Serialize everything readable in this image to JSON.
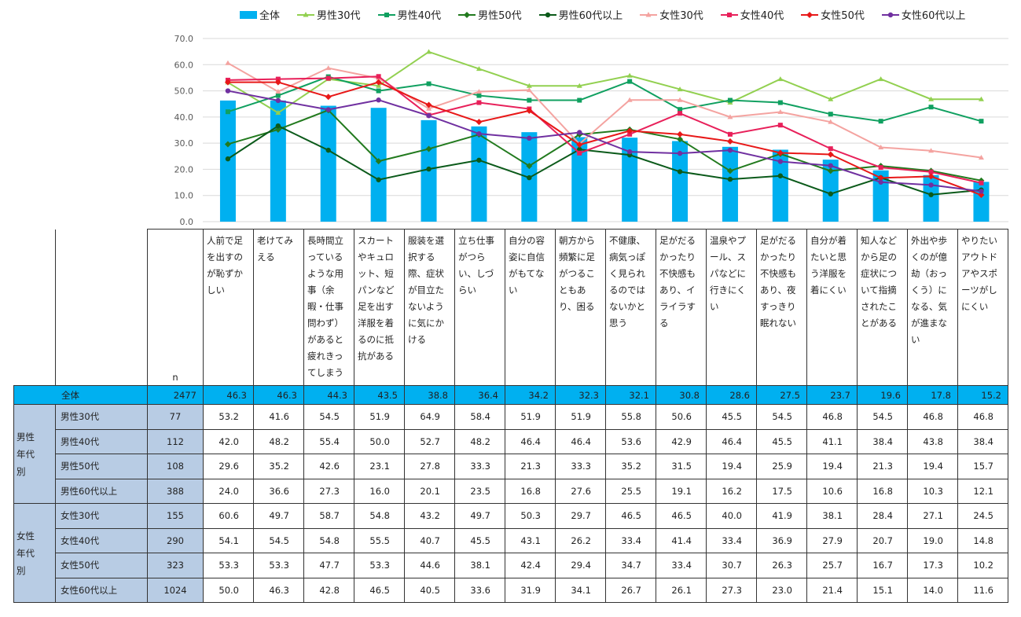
{
  "legend": [
    {
      "name": "全体",
      "type": "bar",
      "color": "#00b0f0"
    },
    {
      "name": "男性30代",
      "type": "line",
      "color": "#92d050",
      "marker": "triangle"
    },
    {
      "name": "男性40代",
      "type": "line",
      "color": "#10a060",
      "marker": "square"
    },
    {
      "name": "男性50代",
      "type": "line",
      "color": "#227a1e",
      "marker": "diamond"
    },
    {
      "name": "男性60代以上",
      "type": "line",
      "color": "#0b5a1a",
      "marker": "circle"
    },
    {
      "name": "女性30代",
      "type": "line",
      "color": "#f4a3a0",
      "marker": "triangle"
    },
    {
      "name": "女性40代",
      "type": "line",
      "color": "#e8205a",
      "marker": "square"
    },
    {
      "name": "女性50代",
      "type": "line",
      "color": "#e81818",
      "marker": "diamond"
    },
    {
      "name": "女性60代以上",
      "type": "line",
      "color": "#7030a0",
      "marker": "circle"
    }
  ],
  "chart_data": {
    "type": "bar",
    "title": "",
    "ylim": [
      0,
      70
    ],
    "yticks": [
      "0.0",
      "10.0",
      "20.0",
      "30.0",
      "40.0",
      "50.0",
      "60.0",
      "70.0"
    ],
    "categories": [
      "人前で足を出すのが恥ずかしい",
      "老けてみえる",
      "長時間立っているような用事（余暇・仕事問わず）があると疲れきってしまう",
      "スカートやキュロット、短パンなど足を出す洋服を着るのに抵抗がある",
      "服装を選択する際、症状が目立たないように気にかける",
      "立ち仕事がつらい、しづらい",
      "自分の容姿に自信がもてない",
      "朝方から頻繁に足がつることもあり、困る",
      "不健康、病気っぽく見られるのではないかと思う",
      "足がだるかったり不快感もあり、イライラする",
      "温泉やプール、スパなどに行きにくい",
      "足がだるかったり不快感もあり、夜すっきり眠れない",
      "自分が着たいと思う洋服を着にくい",
      "知人などから足の症状について指摘されたことがある",
      "外出や歩くのが億劫（おっくう）になる、気が進まない",
      "やりたいアウトドアやスポーツがしにくい"
    ],
    "series": [
      {
        "name": "全体",
        "n": "2477",
        "values": [
          46.3,
          46.3,
          44.3,
          43.5,
          38.8,
          36.4,
          34.2,
          32.3,
          32.1,
          30.8,
          28.6,
          27.5,
          23.7,
          19.6,
          17.8,
          15.2
        ]
      },
      {
        "name": "男性30代",
        "n": "77",
        "values": [
          53.2,
          41.6,
          54.5,
          51.9,
          64.9,
          58.4,
          51.9,
          51.9,
          55.8,
          50.6,
          45.5,
          54.5,
          46.8,
          54.5,
          46.8,
          46.8
        ]
      },
      {
        "name": "男性40代",
        "n": "112",
        "values": [
          42.0,
          48.2,
          55.4,
          50.0,
          52.7,
          48.2,
          46.4,
          46.4,
          53.6,
          42.9,
          46.4,
          45.5,
          41.1,
          38.4,
          43.8,
          38.4
        ]
      },
      {
        "name": "男性50代",
        "n": "108",
        "values": [
          29.6,
          35.2,
          42.6,
          23.1,
          27.8,
          33.3,
          21.3,
          33.3,
          35.2,
          31.5,
          19.4,
          25.9,
          19.4,
          21.3,
          19.4,
          15.7
        ]
      },
      {
        "name": "男性60代以上",
        "n": "388",
        "values": [
          24.0,
          36.6,
          27.3,
          16.0,
          20.1,
          23.5,
          16.8,
          27.6,
          25.5,
          19.1,
          16.2,
          17.5,
          10.6,
          16.8,
          10.3,
          12.1
        ]
      },
      {
        "name": "女性30代",
        "n": "155",
        "values": [
          60.6,
          49.7,
          58.7,
          54.8,
          43.2,
          49.7,
          50.3,
          29.7,
          46.5,
          46.5,
          40.0,
          41.9,
          38.1,
          28.4,
          27.1,
          24.5
        ]
      },
      {
        "name": "女性40代",
        "n": "290",
        "values": [
          54.1,
          54.5,
          54.8,
          55.5,
          40.7,
          45.5,
          43.1,
          26.2,
          33.4,
          41.4,
          33.4,
          36.9,
          27.9,
          20.7,
          19.0,
          14.8
        ]
      },
      {
        "name": "女性50代",
        "n": "323",
        "values": [
          53.3,
          53.3,
          47.7,
          53.3,
          44.6,
          38.1,
          42.4,
          29.4,
          34.7,
          33.4,
          30.7,
          26.3,
          25.7,
          16.7,
          17.3,
          10.2
        ]
      },
      {
        "name": "女性60代以上",
        "n": "1024",
        "values": [
          50.0,
          46.3,
          42.8,
          46.5,
          40.5,
          33.6,
          31.9,
          34.1,
          26.7,
          26.1,
          27.3,
          23.0,
          21.4,
          15.1,
          14.0,
          11.6
        ]
      }
    ]
  },
  "table": {
    "n_header": "n",
    "group_male": "男性年代別",
    "group_female": "女性年代別"
  }
}
